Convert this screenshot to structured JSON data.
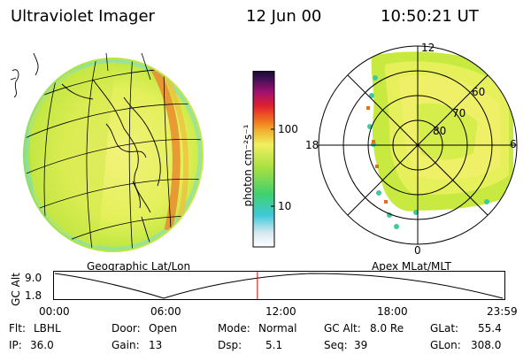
{
  "header": {
    "instrument": "Ultraviolet Imager",
    "date": "12 Jun 00",
    "time": "10:50:21 UT"
  },
  "colorbar": {
    "label": "photon cm⁻²s⁻¹",
    "ticks": [
      "100",
      "10"
    ]
  },
  "polar": {
    "lat_labels": [
      "80",
      "70",
      "60"
    ],
    "mlt_labels": [
      "12",
      "18",
      "6",
      "0"
    ]
  },
  "captions": {
    "left": "Geographic Lat/Lon",
    "right": "Apex MLat/MLT"
  },
  "timeline": {
    "y_axis_label": "GC Alt",
    "y_ticks": [
      "9.0",
      "1.8"
    ],
    "x_ticks": [
      "00:00",
      "06:00",
      "12:00",
      "18:00",
      "23:59"
    ],
    "current_marker_fraction": 0.4516
  },
  "info": {
    "flt_label": "Flt:",
    "flt_value": "LBHL",
    "ip_label": "IP:",
    "ip_value": "36.0",
    "door_label": "Door:",
    "door_value": "Open",
    "gain_label": "Gain:",
    "gain_value": "13",
    "mode_label": "Mode:",
    "mode_value": "Normal",
    "dsp_label": "Dsp:",
    "dsp_value": "5.1",
    "gcalt_label": "GC Alt:",
    "gcalt_value": "8.0 Re",
    "seq_label": "Seq:",
    "seq_value": "39",
    "glat_label": "GLat:",
    "glat_value": "55.4",
    "glon_label": "GLon:",
    "glon_value": "308.0"
  },
  "colors": {
    "marker": "#dd0000",
    "earth_fill": "#d6ee40",
    "auroral_band": "#e89030"
  }
}
